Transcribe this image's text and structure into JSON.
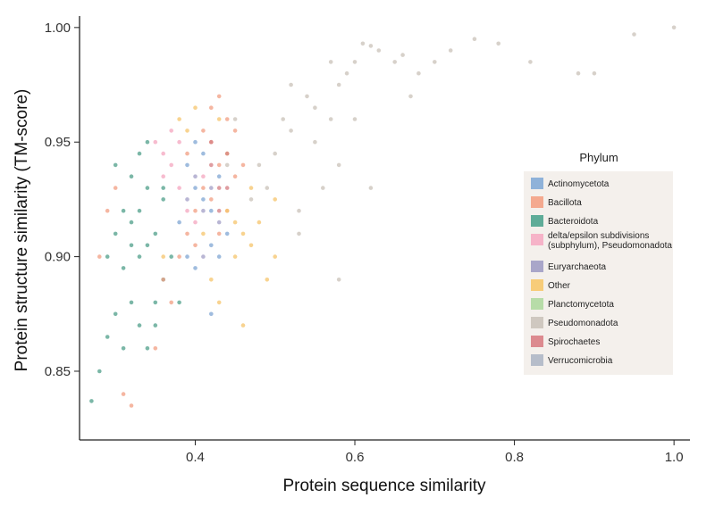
{
  "chart_data": {
    "type": "scatter",
    "xlabel": "Protein sequence similarity",
    "ylabel": "Protein structure similarity (TM-score)",
    "xlim": [
      0.255,
      1.02
    ],
    "ylim": [
      0.82,
      1.005
    ],
    "x_ticks": [
      {
        "value": 0.4,
        "label": "0.4"
      },
      {
        "value": 0.6,
        "label": "0.6"
      },
      {
        "value": 0.8,
        "label": "0.8"
      },
      {
        "value": 1.0,
        "label": "1.0"
      }
    ],
    "y_ticks": [
      {
        "value": 0.85,
        "label": "0.85"
      },
      {
        "value": 0.9,
        "label": "0.90"
      },
      {
        "value": 0.95,
        "label": "0.95"
      },
      {
        "value": 1.0,
        "label": "1.00"
      }
    ],
    "grid": false,
    "legend": {
      "title": "Phylum",
      "placement": "right",
      "entries": [
        {
          "label": "Actinomycetota",
          "color": "#8fb2d9"
        },
        {
          "label": "Bacillota",
          "color": "#f4a98f"
        },
        {
          "label": "Bacteroidota",
          "color": "#5fac98"
        },
        {
          "label": "delta/epsilon subdivisions (subphylum), Pseudomonadota",
          "color": "#f6b3c8"
        },
        {
          "label": "Euryarchaeota",
          "color": "#a9a6c9"
        },
        {
          "label": "Other",
          "color": "#f7cc79"
        },
        {
          "label": "Planctomycetota",
          "color": "#b7dca8"
        },
        {
          "label": "Pseudomonadota",
          "color": "#cfc8c0"
        },
        {
          "label": "Spirochaetes",
          "color": "#dc8a8f"
        },
        {
          "label": "Verrucomicrobia",
          "color": "#b6bdca"
        }
      ]
    },
    "series": [
      {
        "name": "Pseudomonadota",
        "color": "#c9c1b8",
        "points": [
          [
            0.52,
            0.955
          ],
          [
            0.55,
            0.965
          ],
          [
            0.5,
            0.945
          ],
          [
            0.48,
            0.94
          ],
          [
            0.58,
            0.975
          ],
          [
            0.6,
            0.985
          ],
          [
            0.62,
            0.992
          ],
          [
            0.65,
            0.985
          ],
          [
            0.68,
            0.98
          ],
          [
            0.7,
            0.985
          ],
          [
            0.56,
            0.93
          ],
          [
            0.53,
            0.92
          ],
          [
            0.57,
            0.96
          ],
          [
            0.54,
            0.97
          ],
          [
            0.51,
            0.96
          ],
          [
            0.59,
            0.98
          ],
          [
            0.63,
            0.99
          ],
          [
            0.66,
            0.988
          ],
          [
            0.72,
            0.99
          ],
          [
            0.75,
            0.995
          ],
          [
            0.78,
            0.993
          ],
          [
            0.82,
            0.985
          ],
          [
            0.88,
            0.98
          ],
          [
            0.95,
            0.997
          ],
          [
            1.0,
            1.0
          ],
          [
            0.9,
            0.98
          ],
          [
            0.47,
            0.925
          ],
          [
            0.49,
            0.93
          ],
          [
            0.55,
            0.95
          ],
          [
            0.6,
            0.96
          ],
          [
            0.52,
            0.975
          ],
          [
            0.58,
            0.94
          ],
          [
            0.45,
            0.96
          ],
          [
            0.44,
            0.94
          ],
          [
            0.61,
            0.993
          ],
          [
            0.57,
            0.985
          ],
          [
            0.53,
            0.91
          ],
          [
            0.58,
            0.89
          ],
          [
            0.62,
            0.93
          ],
          [
            0.67,
            0.97
          ]
        ]
      },
      {
        "name": "Bacteroidota",
        "color": "#4f9f8a",
        "points": [
          [
            0.31,
            0.92
          ],
          [
            0.33,
            0.9
          ],
          [
            0.34,
            0.93
          ],
          [
            0.32,
            0.88
          ],
          [
            0.35,
            0.91
          ],
          [
            0.3,
            0.94
          ],
          [
            0.33,
            0.87
          ],
          [
            0.36,
            0.89
          ],
          [
            0.34,
            0.95
          ],
          [
            0.29,
            0.9
          ],
          [
            0.31,
            0.86
          ],
          [
            0.28,
            0.85
          ],
          [
            0.27,
            0.837
          ],
          [
            0.3,
            0.91
          ],
          [
            0.32,
            0.935
          ],
          [
            0.35,
            0.88
          ],
          [
            0.33,
            0.92
          ],
          [
            0.34,
            0.86
          ],
          [
            0.36,
            0.93
          ],
          [
            0.37,
            0.9
          ],
          [
            0.29,
            0.865
          ],
          [
            0.31,
            0.895
          ],
          [
            0.32,
            0.915
          ],
          [
            0.34,
            0.905
          ],
          [
            0.38,
            0.88
          ],
          [
            0.33,
            0.945
          ],
          [
            0.3,
            0.875
          ],
          [
            0.35,
            0.87
          ],
          [
            0.36,
            0.925
          ],
          [
            0.32,
            0.905
          ]
        ]
      },
      {
        "name": "Bacillota",
        "color": "#f29d82",
        "points": [
          [
            0.42,
            0.95
          ],
          [
            0.44,
            0.96
          ],
          [
            0.43,
            0.94
          ],
          [
            0.41,
            0.93
          ],
          [
            0.4,
            0.92
          ],
          [
            0.39,
            0.91
          ],
          [
            0.45,
            0.955
          ],
          [
            0.42,
            0.965
          ],
          [
            0.38,
            0.9
          ],
          [
            0.36,
            0.89
          ],
          [
            0.37,
            0.88
          ],
          [
            0.3,
            0.93
          ],
          [
            0.28,
            0.9
          ],
          [
            0.31,
            0.84
          ],
          [
            0.32,
            0.835
          ],
          [
            0.43,
            0.91
          ],
          [
            0.44,
            0.92
          ],
          [
            0.46,
            0.94
          ],
          [
            0.41,
            0.955
          ],
          [
            0.43,
            0.97
          ],
          [
            0.29,
            0.92
          ],
          [
            0.35,
            0.86
          ],
          [
            0.4,
            0.905
          ],
          [
            0.42,
            0.925
          ],
          [
            0.45,
            0.935
          ],
          [
            0.39,
            0.945
          ]
        ]
      },
      {
        "name": "Other",
        "color": "#f5c46b",
        "points": [
          [
            0.44,
            0.92
          ],
          [
            0.46,
            0.91
          ],
          [
            0.48,
            0.915
          ],
          [
            0.45,
            0.9
          ],
          [
            0.47,
            0.93
          ],
          [
            0.43,
            0.96
          ],
          [
            0.4,
            0.965
          ],
          [
            0.38,
            0.96
          ],
          [
            0.5,
            0.9
          ],
          [
            0.49,
            0.89
          ],
          [
            0.46,
            0.87
          ],
          [
            0.42,
            0.89
          ],
          [
            0.41,
            0.91
          ],
          [
            0.44,
            0.945
          ],
          [
            0.36,
            0.9
          ],
          [
            0.5,
            0.925
          ],
          [
            0.47,
            0.905
          ],
          [
            0.43,
            0.88
          ],
          [
            0.39,
            0.955
          ],
          [
            0.45,
            0.915
          ]
        ]
      },
      {
        "name": "Actinomycetota",
        "color": "#7fa6d3",
        "points": [
          [
            0.4,
            0.93
          ],
          [
            0.42,
            0.92
          ],
          [
            0.41,
            0.945
          ],
          [
            0.39,
            0.9
          ],
          [
            0.43,
            0.935
          ],
          [
            0.38,
            0.915
          ],
          [
            0.42,
            0.905
          ],
          [
            0.4,
            0.95
          ],
          [
            0.44,
            0.91
          ],
          [
            0.41,
            0.925
          ],
          [
            0.43,
            0.9
          ],
          [
            0.39,
            0.94
          ],
          [
            0.42,
            0.875
          ],
          [
            0.4,
            0.895
          ]
        ]
      },
      {
        "name": "delta/epsilon subdivisions (subphylum), Pseudomonadota",
        "color": "#f4a6bf",
        "points": [
          [
            0.35,
            0.95
          ],
          [
            0.36,
            0.945
          ],
          [
            0.37,
            0.94
          ],
          [
            0.38,
            0.93
          ],
          [
            0.39,
            0.92
          ],
          [
            0.4,
            0.915
          ],
          [
            0.41,
            0.935
          ],
          [
            0.37,
            0.955
          ],
          [
            0.36,
            0.935
          ],
          [
            0.38,
            0.95
          ]
        ]
      },
      {
        "name": "Spirochaetes",
        "color": "#d47c82",
        "points": [
          [
            0.42,
            0.94
          ],
          [
            0.43,
            0.93
          ],
          [
            0.44,
            0.945
          ],
          [
            0.43,
            0.92
          ],
          [
            0.42,
            0.95
          ],
          [
            0.44,
            0.93
          ]
        ]
      },
      {
        "name": "Euryarchaeota",
        "color": "#a29ec6",
        "points": [
          [
            0.41,
            0.92
          ],
          [
            0.4,
            0.935
          ],
          [
            0.42,
            0.93
          ],
          [
            0.39,
            0.925
          ],
          [
            0.41,
            0.9
          ],
          [
            0.43,
            0.915
          ]
        ]
      }
    ]
  }
}
